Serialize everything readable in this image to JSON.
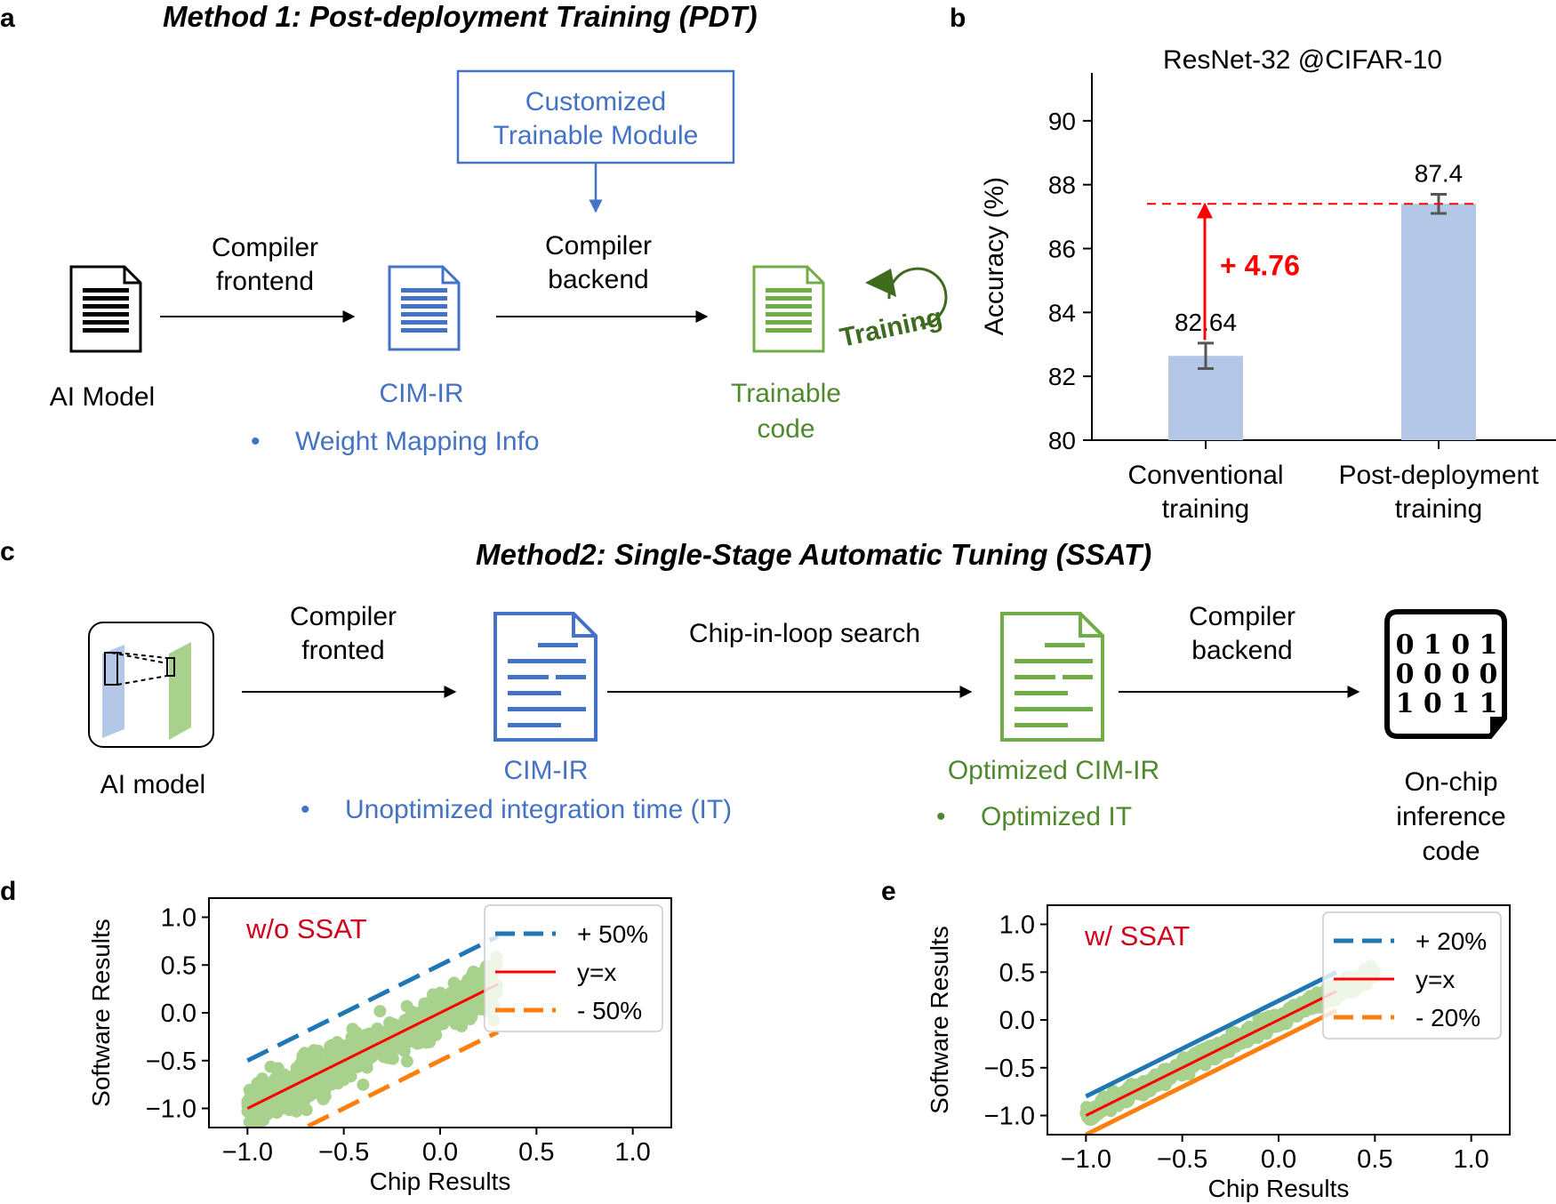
{
  "panels": {
    "a": {
      "letter": "a",
      "title": "Method 1: Post-deployment Training (PDT)",
      "module_label_line1": "Customized",
      "module_label_line2": "Trainable Module",
      "step1_line1": "Compiler",
      "step1_line2": "frontend",
      "step2_line1": "Compiler",
      "step2_line2": "backend",
      "input_label": "AI Model",
      "ir_label": "CIM-IR",
      "ir_bullet": "Weight Mapping Info",
      "output_line1": "Trainable",
      "output_line2": "code",
      "training_label": "Training",
      "bullet_char": "•"
    },
    "b": {
      "letter": "b"
    },
    "c": {
      "letter": "c",
      "title": "Method2: Single-Stage Automatic Tuning (SSAT)",
      "step1_line1": "Compiler",
      "step1_line2": "fronted",
      "search_label": "Chip-in-loop search",
      "step3_line1": "Compiler",
      "step3_line2": "backend",
      "input_label": "AI model",
      "ir_label": "CIM-IR",
      "ir_bullet": "Unoptimized integration time (IT)",
      "opt_label": "Optimized CIM-IR",
      "opt_bullet": "Optimized IT",
      "output_line1": "On-chip",
      "output_line2": "inference",
      "output_line3": "code",
      "binary_rows": [
        "0 1 0 1",
        "0 0 0 0",
        "1 0 1 1"
      ],
      "bullet_char": "•"
    },
    "d": {
      "letter": "d"
    },
    "e": {
      "letter": "e"
    }
  },
  "colors": {
    "blue": "#4472c4",
    "green": "#70ad47",
    "dark_green": "#4e8a2d",
    "red": "#ff0000",
    "bar": "#b4c7e7",
    "scatter": "#a9d18e",
    "dash_blue": "#1f77b4",
    "dash_orange": "#ff7f0e"
  },
  "chart_data": [
    {
      "id": "b",
      "type": "bar",
      "title": "ResNet-32 @CIFAR-10",
      "ylabel": "Accuracy (%)",
      "xlabel": "",
      "categories": [
        [
          "Conventional",
          "training"
        ],
        [
          "Post-deployment",
          "training"
        ]
      ],
      "values": [
        82.64,
        87.4
      ],
      "value_labels": [
        "82.64",
        "87.4"
      ],
      "errors": [
        0.4,
        0.3
      ],
      "ylim": [
        80,
        91.5
      ],
      "yticks": [
        80,
        82,
        84,
        86,
        88,
        90
      ],
      "annotation": "+ 4.76"
    },
    {
      "id": "d",
      "type": "scatter",
      "annotation": "w/o SSAT",
      "xlabel": "Chip Results",
      "ylabel": "Software Results",
      "xlim": [
        -1.2,
        1.2
      ],
      "ylim": [
        -1.2,
        1.2
      ],
      "xticks": [
        "−1.0",
        "−0.5",
        "0.0",
        "0.5",
        "1.0"
      ],
      "yticks": [
        "1.0",
        "0.5",
        "0.0",
        "−0.5",
        "−1.0"
      ],
      "points_range": [
        -1.0,
        0.3
      ],
      "noise": 0.22,
      "legend": [
        "+ 50%",
        "y=x",
        "- 50%"
      ],
      "offset": 0.5
    },
    {
      "id": "e",
      "type": "scatter",
      "annotation": "w/ SSAT",
      "xlabel": "Chip Results",
      "ylabel": "Software Results",
      "xlim": [
        -1.2,
        1.2
      ],
      "ylim": [
        -1.2,
        1.2
      ],
      "xticks": [
        "−1.0",
        "−0.5",
        "0.0",
        "0.5",
        "1.0"
      ],
      "yticks": [
        "1.0",
        "0.5",
        "0.0",
        "−0.5",
        "−1.0"
      ],
      "points_range": [
        -1.0,
        0.5
      ],
      "noise": 0.08,
      "legend": [
        "+ 20%",
        "y=x",
        "- 20%"
      ],
      "offset": 0.2
    }
  ]
}
